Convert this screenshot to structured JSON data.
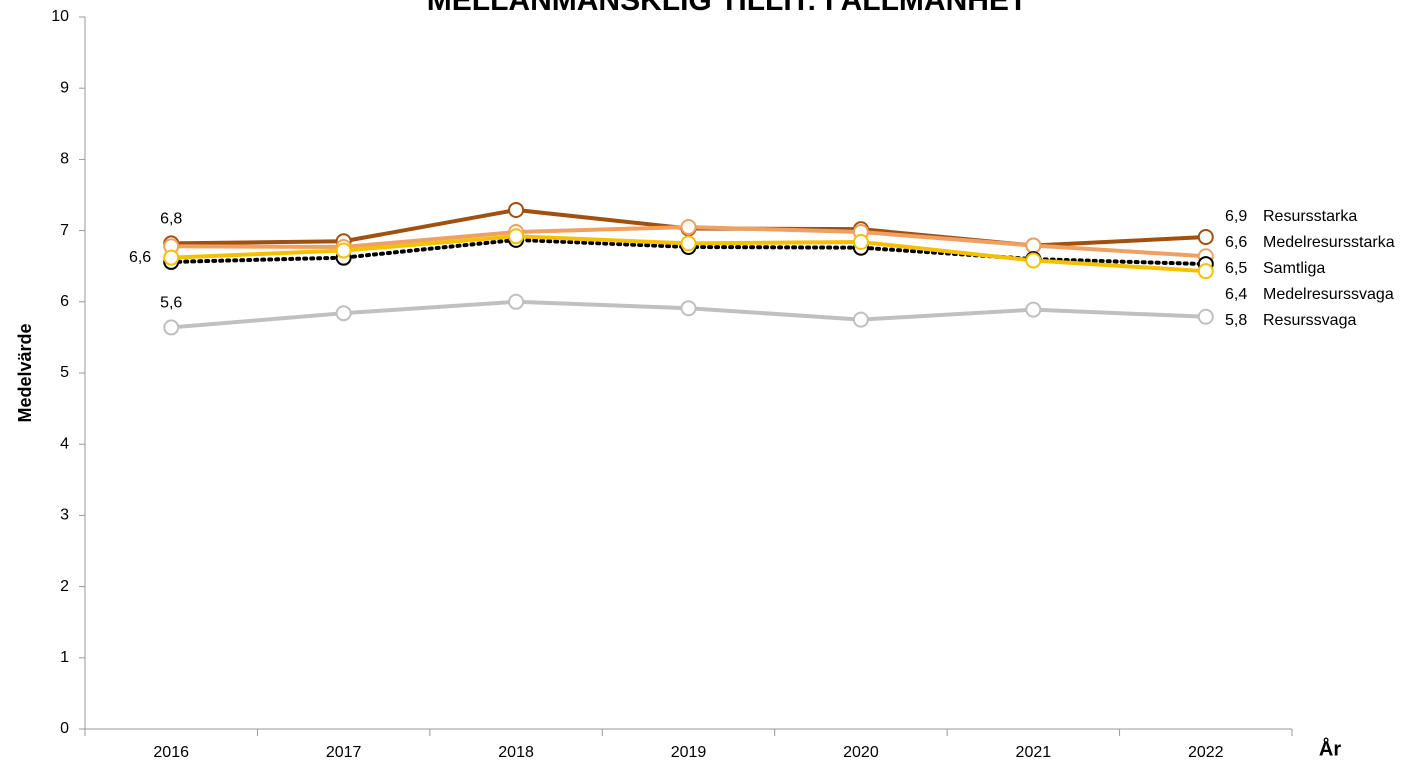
{
  "chart_data": {
    "type": "line",
    "title": "MELLANMÄNSKLIG TILLIT: I ALLMÄNHET",
    "y_label": "Medelvärde",
    "x_label": "År",
    "categories": [
      "2016",
      "2017",
      "2018",
      "2019",
      "2020",
      "2021",
      "2022"
    ],
    "ylim": [
      0,
      10
    ],
    "yticks": [
      0,
      1,
      2,
      3,
      4,
      5,
      6,
      7,
      8,
      9,
      10
    ],
    "series": [
      {
        "name": "Resursstarka",
        "color": "#a0500f",
        "values": [
          6.82,
          6.85,
          7.29,
          7.03,
          7.02,
          6.79,
          6.91
        ],
        "value_labels": [
          "6,8",
          null,
          null,
          null,
          null,
          null,
          "6,9"
        ]
      },
      {
        "name": "Medelresursstarka",
        "color": "#f0a060",
        "values": [
          6.78,
          6.77,
          6.98,
          7.05,
          6.98,
          6.79,
          6.64
        ],
        "value_labels": [
          null,
          null,
          null,
          null,
          null,
          null,
          "6,6"
        ]
      },
      {
        "name": "Samtliga",
        "color": "#000000",
        "dotted": true,
        "values": [
          6.56,
          6.62,
          6.87,
          6.77,
          6.76,
          6.6,
          6.53
        ],
        "value_labels": [
          "6,6",
          null,
          null,
          null,
          null,
          null,
          "6,5"
        ]
      },
      {
        "name": "Medelresurssvaga",
        "color": "#f5c000",
        "values": [
          6.62,
          6.72,
          6.92,
          6.82,
          6.84,
          6.58,
          6.43
        ],
        "value_labels": [
          null,
          null,
          null,
          null,
          null,
          null,
          "6,4"
        ]
      },
      {
        "name": "Resurssvaga",
        "color": "#c0c0c0",
        "values": [
          5.64,
          5.84,
          6.0,
          5.91,
          5.75,
          5.89,
          5.79
        ],
        "value_labels": [
          "5,6",
          null,
          null,
          null,
          null,
          null,
          "5,8"
        ]
      }
    ]
  }
}
